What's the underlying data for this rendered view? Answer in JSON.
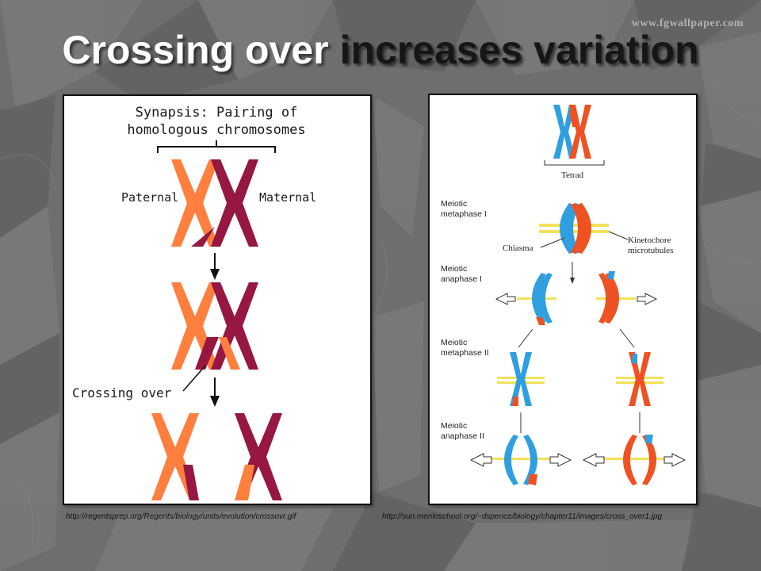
{
  "watermark": "www.fgwallpaper.com",
  "title": {
    "part1": "Crossing over",
    "part2": "increases variation"
  },
  "left_panel": {
    "heading_line1": "Synapsis: Pairing of",
    "heading_line2": "homologous chromosomes",
    "label_paternal": "Paternal",
    "label_maternal": "Maternal",
    "label_crossing": "Crossing over",
    "colors": {
      "paternal": "#ff7f3f",
      "maternal": "#96173f"
    }
  },
  "right_panel": {
    "tetrad": "Tetrad",
    "meiotic": "Meiotic",
    "metaphase_i": "metaphase I",
    "anaphase_i": "anaphase I",
    "metaphase_ii": "metaphase II",
    "anaphase_ii": "anaphase II",
    "chiasma": "Chiasma",
    "kinetochore": "Kinetochore",
    "microtubules": "microtubules",
    "colors": {
      "blue": "#2f9fe0",
      "red": "#ee5222",
      "spindle": "#f3e15a"
    }
  },
  "captions": {
    "left": "http://regentsprep.org/Regents/biology/units/evolution/crossovr.gif",
    "right": "http://sun.menloschool.org/~dspence/biology/chapter11/images/cross_over1.jpg"
  }
}
